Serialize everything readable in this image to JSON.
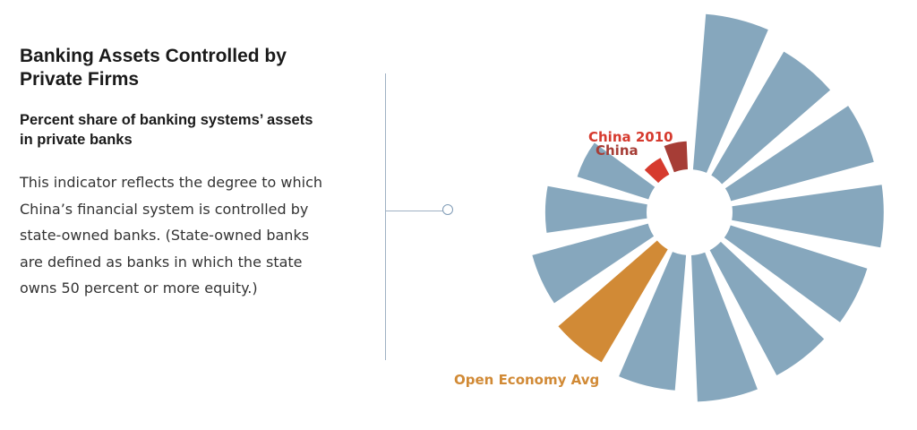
{
  "text": {
    "title_line1": "Banking Assets Controlled by",
    "title_line2": "Private Firms",
    "subtitle_line1": "Percent share of banking systems’ assets",
    "subtitle_line2": "in private banks",
    "desc_line1": "This indicator reflects the degree to which",
    "desc_line2": "China’s financial system is controlled by",
    "desc_line3": "state-owned banks. (State-owned banks",
    "desc_line4": "are defined as banks in which the state",
    "desc_line5": "owns 50 percent or more equity.)"
  },
  "colors": {
    "economy": "#86a7bd",
    "china": "#a63d36",
    "china_2010": "#d63a2e",
    "open_avg": "#d18a36"
  },
  "chart_data": {
    "type": "radial-bar",
    "title": "Banking Assets Controlled by Private Firms",
    "subtitle": "Percent share of banking systems’ assets in private banks",
    "scale": [
      0,
      100
    ],
    "series": [
      {
        "name": "China",
        "values": [
          18
        ]
      },
      {
        "name": "China 2010",
        "values": [
          12
        ]
      },
      {
        "name": "Open Economy Avg",
        "values": [
          84
        ]
      }
    ],
    "bars": [
      {
        "label": "",
        "value": 100,
        "kind": "economy"
      },
      {
        "label": "",
        "value": 92,
        "kind": "economy"
      },
      {
        "label": "",
        "value": 95,
        "kind": "economy"
      },
      {
        "label": "",
        "value": 97,
        "kind": "economy"
      },
      {
        "label": "",
        "value": 92,
        "kind": "economy"
      },
      {
        "label": "",
        "value": 91,
        "kind": "economy"
      },
      {
        "label": "",
        "value": 94,
        "kind": "economy"
      },
      {
        "label": "",
        "value": 87,
        "kind": "economy"
      },
      {
        "label": "Open Economy Avg",
        "value": 84,
        "kind": "open_avg"
      },
      {
        "label": "",
        "value": 77,
        "kind": "economy"
      },
      {
        "label": "",
        "value": 65,
        "kind": "economy"
      },
      {
        "label": "",
        "value": 48,
        "kind": "economy"
      },
      {
        "label": "China 2010",
        "value": 12,
        "kind": "china_2010"
      },
      {
        "label": "China",
        "value": 18,
        "kind": "china"
      }
    ]
  }
}
